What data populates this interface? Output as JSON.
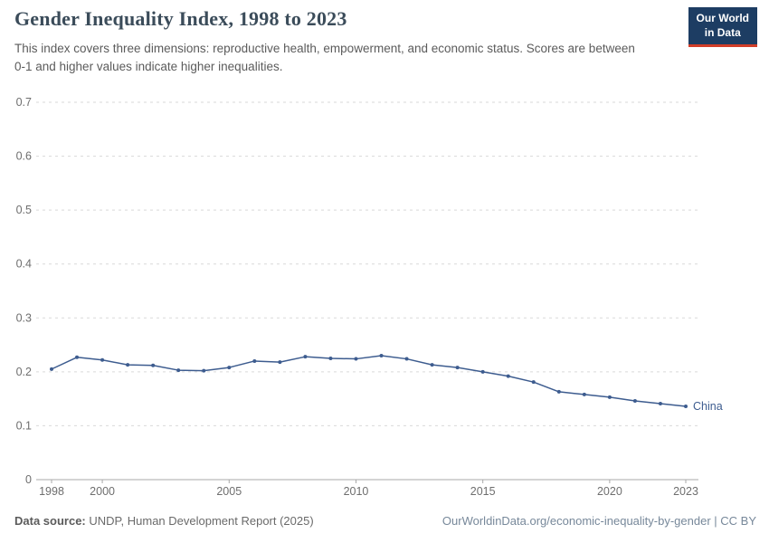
{
  "header": {
    "title": "Gender Inequality Index, 1998 to 2023",
    "subtitle": "This index covers three dimensions: reproductive health, empowerment, and economic status. Scores are between 0-1 and higher values indicate higher inequalities.",
    "logo": {
      "line1": "Our World",
      "line2": "in Data"
    }
  },
  "footer": {
    "source_label": "Data source:",
    "source_text": " UNDP, Human Development Report (2025)",
    "link_text": "OurWorldinData.org/economic-inequality-by-gender | CC BY"
  },
  "chart_data": {
    "type": "line",
    "title": "Gender Inequality Index, 1998 to 2023",
    "xlabel": "",
    "ylabel": "",
    "ylim": [
      0,
      0.7
    ],
    "yticks": [
      0,
      0.1,
      0.2,
      0.3,
      0.4,
      0.5,
      0.6,
      0.7
    ],
    "xticks": [
      1998,
      2000,
      2005,
      2010,
      2015,
      2020,
      2023
    ],
    "grid": true,
    "legend_position": "end-of-line",
    "colors": {
      "line": "#3d5c8f",
      "grid": "#d9d9d9",
      "axis": "#a8a8a8",
      "tick_text": "#6e6e6e"
    },
    "x": [
      1998,
      1999,
      2000,
      2001,
      2002,
      2003,
      2004,
      2005,
      2006,
      2007,
      2008,
      2009,
      2010,
      2011,
      2012,
      2013,
      2014,
      2015,
      2016,
      2017,
      2018,
      2019,
      2020,
      2021,
      2022,
      2023
    ],
    "series": [
      {
        "name": "China",
        "values": [
          0.205,
          0.227,
          0.222,
          0.213,
          0.212,
          0.203,
          0.202,
          0.208,
          0.22,
          0.218,
          0.228,
          0.225,
          0.224,
          0.23,
          0.224,
          0.213,
          0.208,
          0.2,
          0.192,
          0.181,
          0.163,
          0.158,
          0.153,
          0.146,
          0.141,
          0.136
        ]
      }
    ]
  }
}
